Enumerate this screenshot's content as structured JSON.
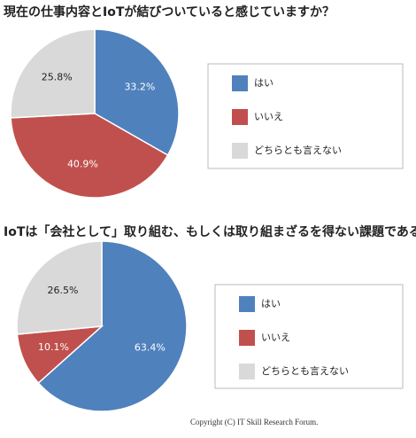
{
  "chart_data": [
    {
      "type": "pie",
      "title": "現在の仕事内容とIoTが結びついていると感じていますか？",
      "categories": [
        "はい",
        "いいえ",
        "どちらとも言えない"
      ],
      "values": [
        33.2,
        40.9,
        25.8
      ],
      "value_labels": [
        "33.2%",
        "40.9%",
        "25.8%"
      ],
      "colors": [
        "#4f81bd",
        "#c0504d",
        "#d9d9d9"
      ]
    },
    {
      "type": "pie",
      "title": "IoTは「会社として」取り組む、もしくは取り組まざるを得ない課題である",
      "categories": [
        "はい",
        "いいえ",
        "どちらとも言えない"
      ],
      "values": [
        63.4,
        10.1,
        26.5
      ],
      "value_labels": [
        "63.4%",
        "10.1%",
        "26.5%"
      ],
      "colors": [
        "#4f81bd",
        "#c0504d",
        "#d9d9d9"
      ]
    }
  ],
  "footer": "Copyright (C) IT Skill Research Forum."
}
